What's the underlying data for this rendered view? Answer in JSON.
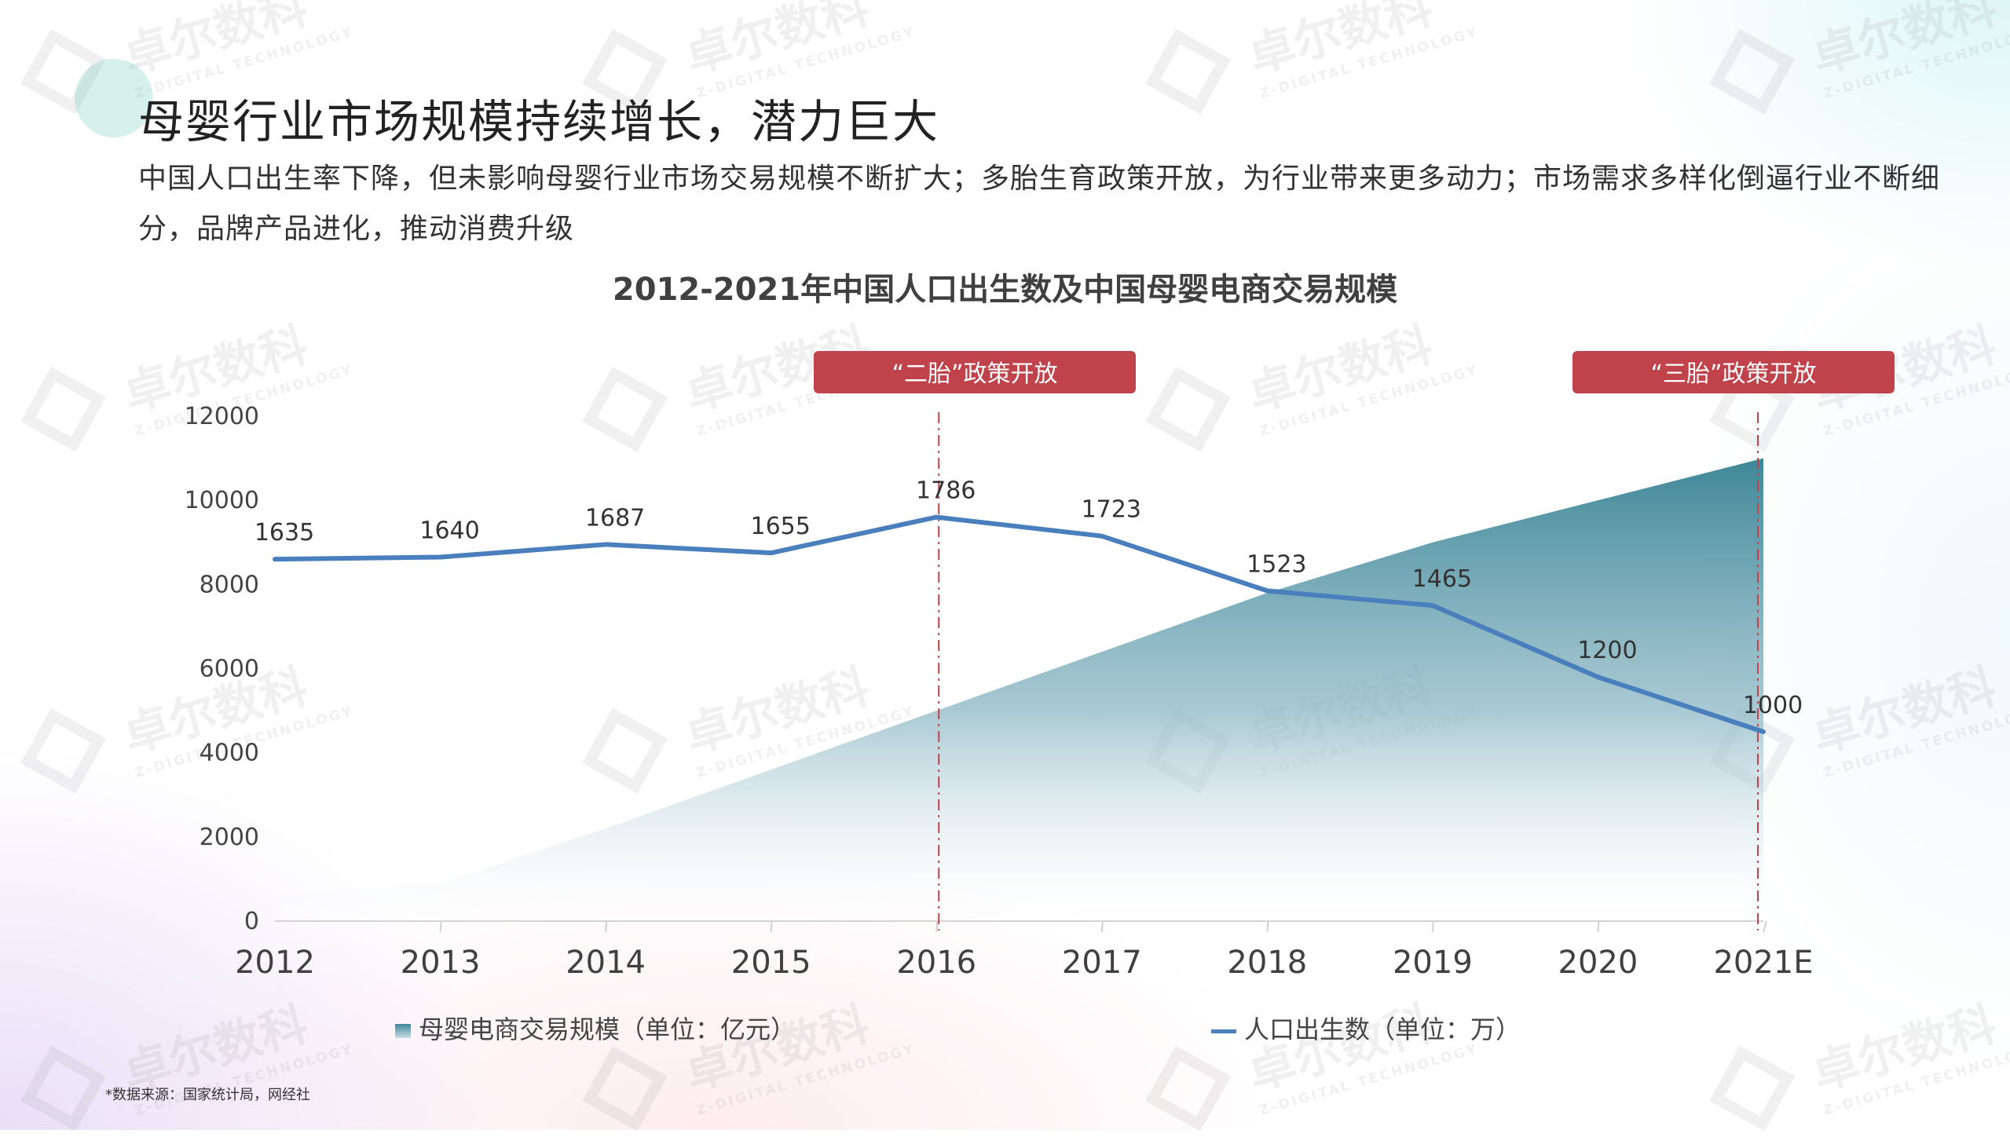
{
  "header": {
    "title": "母婴行业市场规模持续增长，潜力巨大",
    "subtitle": "中国人口出生率下降，但未影响母婴行业市场交易规模不断扩大；多胎生育政策开放，为行业带来更多动力；市场需求多样化倒逼行业不断细分，品牌产品进化，推动消费升级"
  },
  "watermark": {
    "brand_cn": "卓尔数科",
    "brand_en": "Z-DIGITAL TECHNOLOGY"
  },
  "chart_data": {
    "type": "area",
    "title": "2012-2021年中国人口出生数及中国母婴电商交易规模",
    "categories": [
      "2012",
      "2013",
      "2014",
      "2015",
      "2016",
      "2017",
      "2018",
      "2019",
      "2020",
      "2021E"
    ],
    "ylim": [
      0,
      12000
    ],
    "yticks": [
      "0",
      "2000",
      "4000",
      "6000",
      "8000",
      "10000",
      "12000"
    ],
    "series": [
      {
        "name": "母婴电商交易规模（单位：亿元）",
        "type": "area",
        "color": "#3e8798",
        "values": [
          600,
          900,
          2200,
          3600,
          5000,
          6400,
          7800,
          9000,
          10000,
          11000
        ]
      },
      {
        "name": "人口出生数（单位：万）",
        "type": "line",
        "color": "#4a7fbd",
        "values": [
          8600,
          8650,
          8950,
          8750,
          9600,
          9150,
          7850,
          7500,
          5800,
          4500
        ],
        "labels": [
          "1635",
          "1640",
          "1687",
          "1655",
          "1786",
          "1723",
          "1523",
          "1465",
          "1200",
          "1000"
        ]
      }
    ],
    "annotations": [
      {
        "label": "“二胎”政策开放",
        "x": "2016",
        "color": "#c0434b"
      },
      {
        "label": "“三胎”政策开放",
        "x": "2021E",
        "color": "#c0434b"
      }
    ],
    "legend": "bottom",
    "grid": false
  },
  "footer": {
    "source": "*数据来源：国家统计局，网经社"
  }
}
